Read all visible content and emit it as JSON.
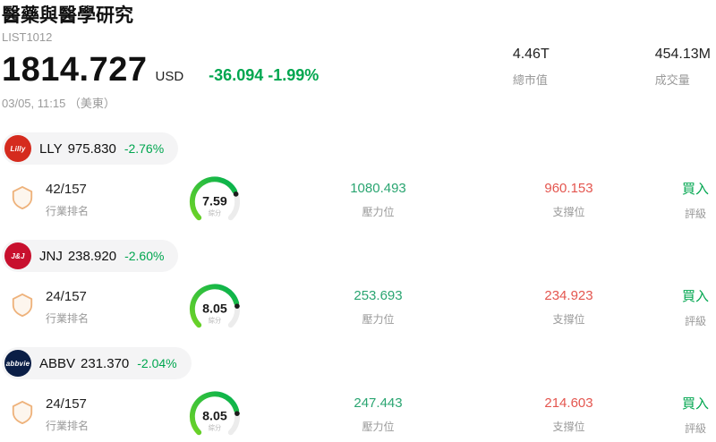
{
  "header": {
    "title": "醫藥與醫學研究",
    "list_id": "LIST1012",
    "price": "1814.727",
    "currency": "USD",
    "change": "-36.094 -1.99%",
    "timestamp": "03/05, 11:15 （美東）",
    "stats": [
      {
        "value": "4.46T",
        "label": "總市值"
      },
      {
        "value": "454.13M",
        "label": "成交量"
      }
    ]
  },
  "labels": {
    "rank": "行業排名",
    "score": "綜分",
    "resistance": "壓力位",
    "support": "支撐位",
    "rating": "評級"
  },
  "colors": {
    "down_green": "#00a64f",
    "resistance_green": "#2aa571",
    "support_red": "#e4564f",
    "rank_badge_orange": "#eeb27b",
    "gauge_green": "#00b050"
  },
  "stocks": [
    {
      "symbol": "LLY",
      "price": "975.830",
      "change": "-2.76%",
      "logo_text": "Lilly",
      "logo_color": "#d52b1e",
      "rank": "42/157",
      "score": "7.59",
      "score_value": 7.59,
      "resistance": "1080.493",
      "support": "960.153",
      "rating": "買入"
    },
    {
      "symbol": "JNJ",
      "price": "238.920",
      "change": "-2.60%",
      "logo_text": "J&J",
      "logo_color": "#c8102e",
      "rank": "24/157",
      "score": "8.05",
      "score_value": 8.05,
      "resistance": "253.693",
      "support": "234.923",
      "rating": "買入"
    },
    {
      "symbol": "ABBV",
      "price": "231.370",
      "change": "-2.04%",
      "logo_text": "abbvie",
      "logo_color": "#0a1e46",
      "rank": "24/157",
      "score": "8.05",
      "score_value": 8.05,
      "resistance": "247.443",
      "support": "214.603",
      "rating": "買入"
    }
  ]
}
